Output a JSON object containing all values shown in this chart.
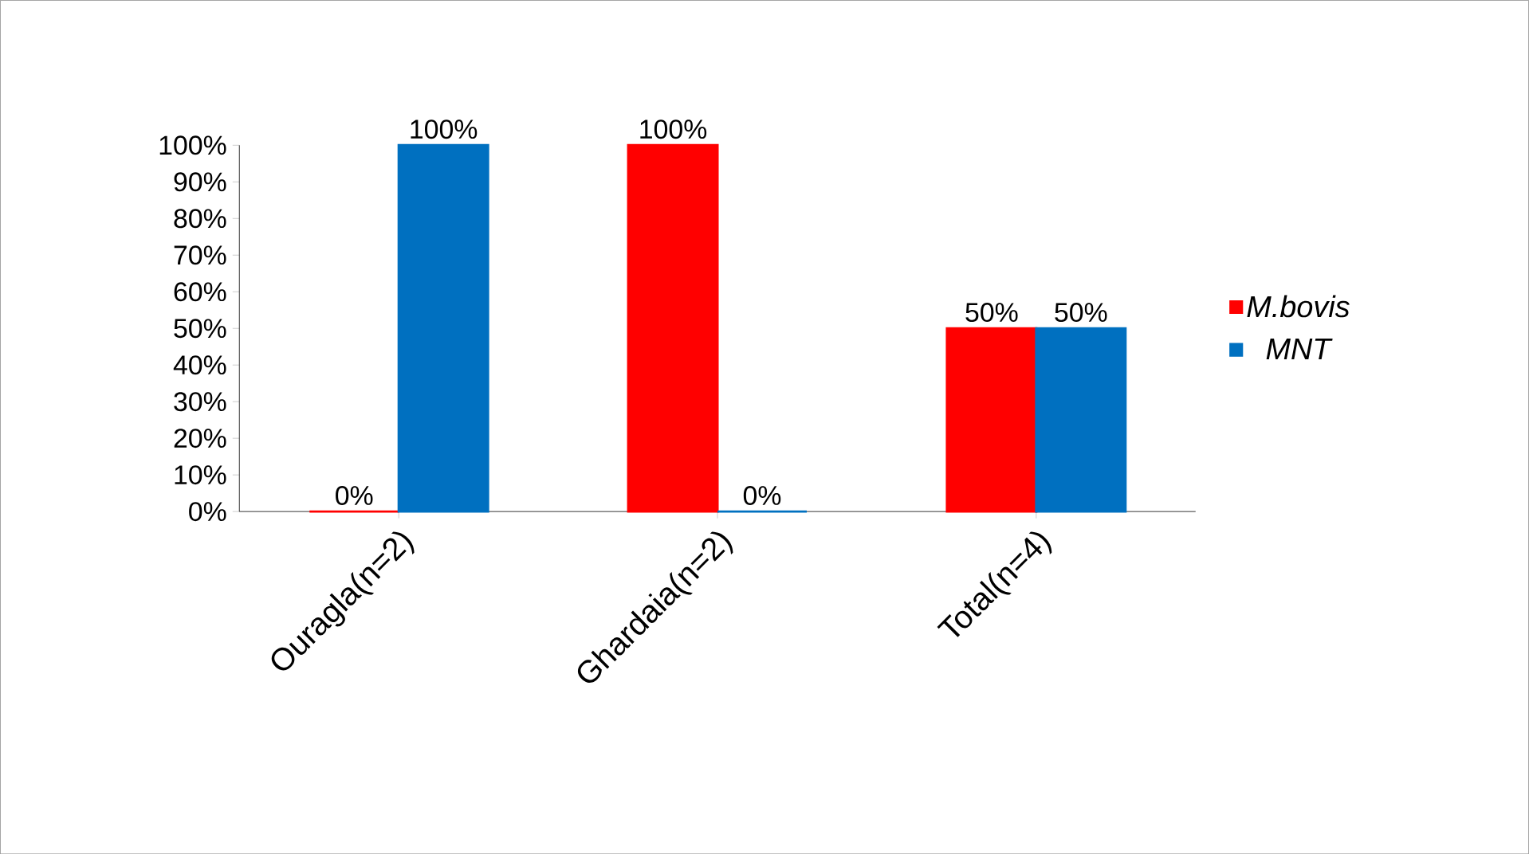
{
  "chart_data": {
    "type": "bar",
    "categories": [
      "Ouragla(n=2)",
      "Ghardaia(n=2)",
      "Total(n=4)"
    ],
    "series": [
      {
        "name": "M.bovis",
        "color": "#ff0000",
        "values": [
          0,
          100,
          50
        ],
        "value_labels": [
          "0%",
          "100%",
          "50%"
        ]
      },
      {
        "name": "MNT",
        "color": "#0070c0",
        "values": [
          100,
          0,
          50
        ],
        "value_labels": [
          "100%",
          "0%",
          "50%"
        ]
      }
    ],
    "ylim": [
      0,
      100
    ],
    "yticks": [
      {
        "value": 0,
        "label": "0%"
      },
      {
        "value": 10,
        "label": "10%"
      },
      {
        "value": 20,
        "label": "20%"
      },
      {
        "value": 30,
        "label": "30%"
      },
      {
        "value": 40,
        "label": "40%"
      },
      {
        "value": 50,
        "label": "50%"
      },
      {
        "value": 60,
        "label": "60%"
      },
      {
        "value": 70,
        "label": "70%"
      },
      {
        "value": 80,
        "label": "80%"
      },
      {
        "value": 90,
        "label": "90%"
      },
      {
        "value": 100,
        "label": "100%"
      }
    ],
    "legend": "right"
  }
}
